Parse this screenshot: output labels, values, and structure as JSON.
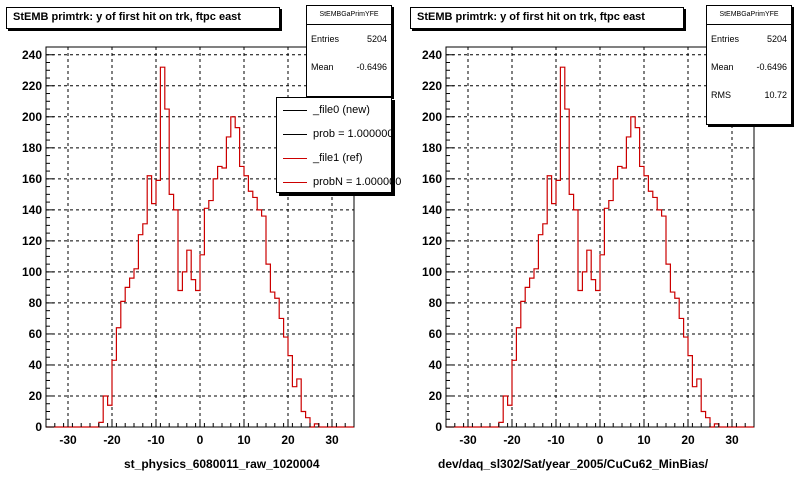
{
  "chart_data": [
    {
      "type": "histogram",
      "title": "StEMB primtrk: y of first hit on trk, ftpc east",
      "xlabel": "st_physics_6080011_raw_1020004",
      "ylabel": "",
      "xlim": [
        -35,
        35
      ],
      "ylim": [
        0,
        245
      ],
      "x_ticks": [
        -30,
        -20,
        -10,
        0,
        10,
        20,
        30
      ],
      "y_ticks": [
        0,
        20,
        40,
        60,
        80,
        100,
        120,
        140,
        160,
        180,
        200,
        220,
        240
      ],
      "grid": true,
      "bin_start": -35,
      "bin_width": 1,
      "series": [
        {
          "name": "_file1 (ref)",
          "color": "#cc0000",
          "values": [
            0,
            0,
            0,
            0,
            0,
            0,
            0,
            0,
            0,
            0,
            0,
            0,
            3,
            20,
            14,
            43,
            64,
            81,
            90,
            96,
            102,
            124,
            131,
            162,
            144,
            159,
            232,
            205,
            150,
            140,
            88,
            100,
            114,
            95,
            88,
            111,
            141,
            146,
            160,
            168,
            167,
            187,
            200,
            193,
            168,
            162,
            152,
            148,
            140,
            136,
            105,
            87,
            83,
            70,
            58,
            46,
            26,
            31,
            10,
            6,
            0,
            2,
            0,
            0,
            0,
            0,
            0,
            0,
            0,
            0
          ]
        }
      ],
      "legend": {
        "placement": "top-right",
        "entries": [
          {
            "label": "_file0 (new)",
            "color": "#000000"
          },
          {
            "label": "prob = 1.000000",
            "color": "#000000"
          },
          {
            "label": "_file1 (ref)",
            "color": "#cc0000"
          },
          {
            "label": "probN = 1.000000",
            "color": "#cc0000"
          }
        ]
      },
      "stats": {
        "name": "StEMBGaPrimYFE",
        "rows": [
          {
            "label": "Entries",
            "value": "5204"
          },
          {
            "label": "Mean",
            "value": "-0.6496"
          }
        ]
      }
    },
    {
      "type": "histogram",
      "title": "StEMB primtrk: y of first hit on trk, ftpc east",
      "xlabel": "dev/daq_sl302/Sat/year_2005/CuCu62_MinBias/",
      "ylabel": "",
      "xlim": [
        -35,
        35
      ],
      "ylim": [
        0,
        245
      ],
      "x_ticks": [
        -30,
        -20,
        -10,
        0,
        10,
        20,
        30
      ],
      "y_ticks": [
        0,
        20,
        40,
        60,
        80,
        100,
        120,
        140,
        160,
        180,
        200,
        220,
        240
      ],
      "grid": true,
      "bin_start": -35,
      "bin_width": 1,
      "series": [
        {
          "name": "",
          "color": "#cc0000",
          "values": [
            0,
            0,
            0,
            0,
            0,
            0,
            0,
            0,
            0,
            0,
            0,
            0,
            3,
            20,
            14,
            43,
            64,
            81,
            90,
            96,
            102,
            124,
            131,
            162,
            144,
            159,
            232,
            205,
            150,
            140,
            88,
            100,
            114,
            95,
            88,
            111,
            141,
            146,
            160,
            168,
            167,
            187,
            200,
            193,
            168,
            162,
            152,
            148,
            140,
            136,
            105,
            87,
            83,
            70,
            58,
            46,
            26,
            31,
            10,
            6,
            0,
            2,
            0,
            0,
            0,
            0,
            0,
            0,
            0,
            0
          ]
        }
      ],
      "stats": {
        "name": "StEMBGaPrimYFE",
        "rows": [
          {
            "label": "Entries",
            "value": "5204"
          },
          {
            "label": "Mean",
            "value": "-0.6496"
          },
          {
            "label": "RMS",
            "value": "10.72"
          }
        ]
      }
    }
  ],
  "footer_note": ""
}
